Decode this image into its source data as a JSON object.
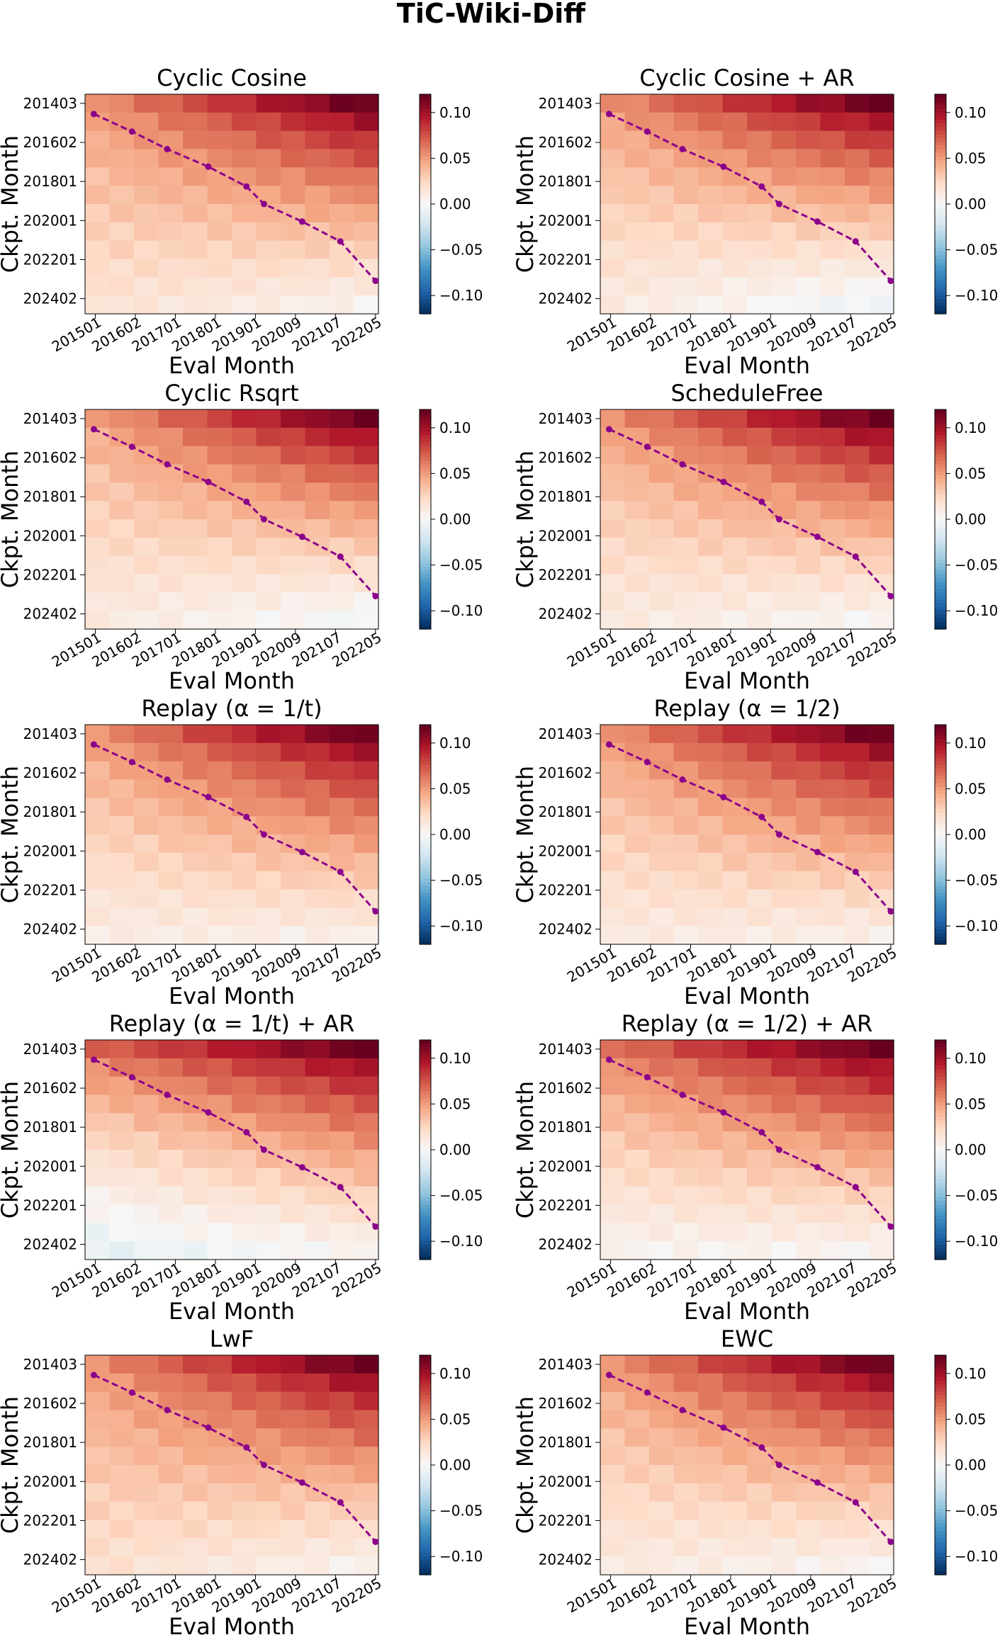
{
  "figure_title": "TiC-Wiki-Diff",
  "colors": {
    "colormap": "RdBu_r",
    "diagonal_line": "#8b008b"
  },
  "chart_data": [
    {
      "type": "heatmap",
      "title": "Cyclic Cosine",
      "xlabel": "Eval Month",
      "ylabel": "Ckpt. Month",
      "xticks": [
        "201501",
        "201602",
        "201701",
        "201801",
        "201901",
        "202009",
        "202107",
        "202205"
      ],
      "yticks": [
        "201403",
        "201602",
        "201801",
        "202001",
        "202201",
        "202402"
      ],
      "colorbar": {
        "vmin": -0.12,
        "vmax": 0.12,
        "ticks": [
          "0.10",
          "0.05",
          "0.00",
          "−0.05",
          "−0.10"
        ],
        "tick_values": [
          0.1,
          0.05,
          0.0,
          -0.05,
          -0.1
        ]
      },
      "grid_size": 12,
      "corner_values": {
        "top_left": 0.055,
        "top_right": 0.12,
        "bottom_left": 0.018,
        "bottom_right": 0.005
      },
      "diagonal_line": {
        "style": "dashed",
        "marker": "dot"
      }
    },
    {
      "type": "heatmap",
      "title": "Cyclic Cosine + AR",
      "xlabel": "Eval Month",
      "ylabel": "Ckpt. Month",
      "xticks": [
        "201501",
        "201602",
        "201701",
        "201801",
        "201901",
        "202009",
        "202107",
        "202205"
      ],
      "yticks": [
        "201403",
        "201602",
        "201801",
        "202001",
        "202201",
        "202402"
      ],
      "colorbar": {
        "vmin": -0.12,
        "vmax": 0.12,
        "ticks": [
          "0.10",
          "0.05",
          "0.00",
          "−0.05",
          "−0.10"
        ],
        "tick_values": [
          0.1,
          0.05,
          0.0,
          -0.05,
          -0.1
        ]
      },
      "grid_size": 12,
      "corner_values": {
        "top_left": 0.055,
        "top_right": 0.12,
        "bottom_left": 0.012,
        "bottom_right": -0.006
      },
      "diagonal_line": {
        "style": "dashed",
        "marker": "dot"
      }
    },
    {
      "type": "heatmap",
      "title": "Cyclic Rsqrt",
      "xlabel": "Eval Month",
      "ylabel": "Ckpt. Month",
      "xticks": [
        "201501",
        "201602",
        "201701",
        "201801",
        "201901",
        "202009",
        "202107",
        "202205"
      ],
      "yticks": [
        "201403",
        "201602",
        "201801",
        "202001",
        "202201",
        "202402"
      ],
      "colorbar": {
        "vmin": -0.12,
        "vmax": 0.12,
        "ticks": [
          "0.10",
          "0.05",
          "0.00",
          "−0.05",
          "−0.10"
        ],
        "tick_values": [
          0.1,
          0.05,
          0.0,
          -0.05,
          -0.1
        ]
      },
      "grid_size": 12,
      "corner_values": {
        "top_left": 0.05,
        "top_right": 0.12,
        "bottom_left": 0.012,
        "bottom_right": -0.003
      },
      "diagonal_line": {
        "style": "dashed",
        "marker": "dot"
      }
    },
    {
      "type": "heatmap",
      "title": "ScheduleFree",
      "xlabel": "Eval Month",
      "ylabel": "Ckpt. Month",
      "xticks": [
        "201501",
        "201602",
        "201701",
        "201801",
        "201901",
        "202009",
        "202107",
        "202205"
      ],
      "yticks": [
        "201403",
        "201602",
        "201801",
        "202001",
        "202201",
        "202402"
      ],
      "colorbar": {
        "vmin": -0.12,
        "vmax": 0.12,
        "ticks": [
          "0.10",
          "0.05",
          "0.00",
          "−0.05",
          "−0.10"
        ],
        "tick_values": [
          0.1,
          0.05,
          0.0,
          -0.05,
          -0.1
        ]
      },
      "grid_size": 12,
      "corner_values": {
        "top_left": 0.055,
        "top_right": 0.12,
        "bottom_left": 0.012,
        "bottom_right": 0.002
      },
      "diagonal_line": {
        "style": "dashed",
        "marker": "dot"
      }
    },
    {
      "type": "heatmap",
      "title": "Replay (α = 1/t)",
      "xlabel": "Eval Month",
      "ylabel": "Ckpt. Month",
      "xticks": [
        "201501",
        "201602",
        "201701",
        "201801",
        "201901",
        "202009",
        "202107",
        "202205"
      ],
      "yticks": [
        "201403",
        "201602",
        "201801",
        "202001",
        "202201",
        "202402"
      ],
      "colorbar": {
        "vmin": -0.12,
        "vmax": 0.12,
        "ticks": [
          "0.10",
          "0.05",
          "0.00",
          "−0.05",
          "−0.10"
        ],
        "tick_values": [
          0.1,
          0.05,
          0.0,
          -0.05,
          -0.1
        ]
      },
      "grid_size": 12,
      "corner_values": {
        "top_left": 0.055,
        "top_right": 0.12,
        "bottom_left": 0.01,
        "bottom_right": 0.008
      },
      "diagonal_line": {
        "style": "dashed",
        "marker": "dot"
      }
    },
    {
      "type": "heatmap",
      "title": "Replay (α = 1/2)",
      "xlabel": "Eval Month",
      "ylabel": "Ckpt. Month",
      "xticks": [
        "201501",
        "201602",
        "201701",
        "201801",
        "201901",
        "202009",
        "202107",
        "202205"
      ],
      "yticks": [
        "201403",
        "201602",
        "201801",
        "202001",
        "202201",
        "202402"
      ],
      "colorbar": {
        "vmin": -0.12,
        "vmax": 0.12,
        "ticks": [
          "0.10",
          "0.05",
          "0.00",
          "−0.05",
          "−0.10"
        ],
        "tick_values": [
          0.1,
          0.05,
          0.0,
          -0.05,
          -0.1
        ]
      },
      "grid_size": 12,
      "corner_values": {
        "top_left": 0.055,
        "top_right": 0.12,
        "bottom_left": 0.012,
        "bottom_right": 0.008
      },
      "diagonal_line": {
        "style": "dashed",
        "marker": "dot"
      }
    },
    {
      "type": "heatmap",
      "title": "Replay (α = 1/t) + AR",
      "xlabel": "Eval Month",
      "ylabel": "Ckpt. Month",
      "xticks": [
        "201501",
        "201602",
        "201701",
        "201801",
        "201901",
        "202009",
        "202107",
        "202205"
      ],
      "yticks": [
        "201403",
        "201602",
        "201801",
        "202001",
        "202201",
        "202402"
      ],
      "colorbar": {
        "vmin": -0.12,
        "vmax": 0.12,
        "ticks": [
          "0.10",
          "0.05",
          "0.00",
          "−0.05",
          "−0.10"
        ],
        "tick_values": [
          0.1,
          0.05,
          0.0,
          -0.05,
          -0.1
        ]
      },
      "grid_size": 12,
      "corner_values": {
        "top_left": 0.07,
        "top_right": 0.12,
        "bottom_left": -0.01,
        "bottom_right": 0.004
      },
      "diagonal_line": {
        "style": "dashed",
        "marker": "dot"
      }
    },
    {
      "type": "heatmap",
      "title": "Replay (α = 1/2) + AR",
      "xlabel": "Eval Month",
      "ylabel": "Ckpt. Month",
      "xticks": [
        "201501",
        "201602",
        "201701",
        "201801",
        "201901",
        "202009",
        "202107",
        "202205"
      ],
      "yticks": [
        "201403",
        "201602",
        "201801",
        "202001",
        "202201",
        "202402"
      ],
      "colorbar": {
        "vmin": -0.12,
        "vmax": 0.12,
        "ticks": [
          "0.10",
          "0.05",
          "0.00",
          "−0.05",
          "−0.10"
        ],
        "tick_values": [
          0.1,
          0.05,
          0.0,
          -0.05,
          -0.1
        ]
      },
      "grid_size": 12,
      "corner_values": {
        "top_left": 0.065,
        "top_right": 0.12,
        "bottom_left": 0.004,
        "bottom_right": 0.004
      },
      "diagonal_line": {
        "style": "dashed",
        "marker": "dot"
      }
    },
    {
      "type": "heatmap",
      "title": "LwF",
      "xlabel": "Eval Month",
      "ylabel": "Ckpt. Month",
      "xticks": [
        "201501",
        "201602",
        "201701",
        "201801",
        "201901",
        "202009",
        "202107",
        "202205"
      ],
      "yticks": [
        "201403",
        "201602",
        "201801",
        "202001",
        "202201",
        "202402"
      ],
      "colorbar": {
        "vmin": -0.12,
        "vmax": 0.12,
        "ticks": [
          "0.10",
          "0.05",
          "0.00",
          "−0.05",
          "−0.10"
        ],
        "tick_values": [
          0.1,
          0.05,
          0.0,
          -0.05,
          -0.1
        ]
      },
      "grid_size": 12,
      "corner_values": {
        "top_left": 0.055,
        "top_right": 0.12,
        "bottom_left": 0.02,
        "bottom_right": 0.005
      },
      "diagonal_line": {
        "style": "dashed",
        "marker": "dot"
      }
    },
    {
      "type": "heatmap",
      "title": "EWC",
      "xlabel": "Eval Month",
      "ylabel": "Ckpt. Month",
      "xticks": [
        "201501",
        "201602",
        "201701",
        "201801",
        "201901",
        "202009",
        "202107",
        "202205"
      ],
      "yticks": [
        "201403",
        "201602",
        "201801",
        "202001",
        "202201",
        "202402"
      ],
      "colorbar": {
        "vmin": -0.12,
        "vmax": 0.12,
        "ticks": [
          "0.10",
          "0.05",
          "0.00",
          "−0.05",
          "−0.10"
        ],
        "tick_values": [
          0.1,
          0.05,
          0.0,
          -0.05,
          -0.1
        ]
      },
      "grid_size": 12,
      "corner_values": {
        "top_left": 0.055,
        "top_right": 0.12,
        "bottom_left": 0.012,
        "bottom_right": 0.004
      },
      "diagonal_line": {
        "style": "dashed",
        "marker": "dot"
      }
    }
  ]
}
